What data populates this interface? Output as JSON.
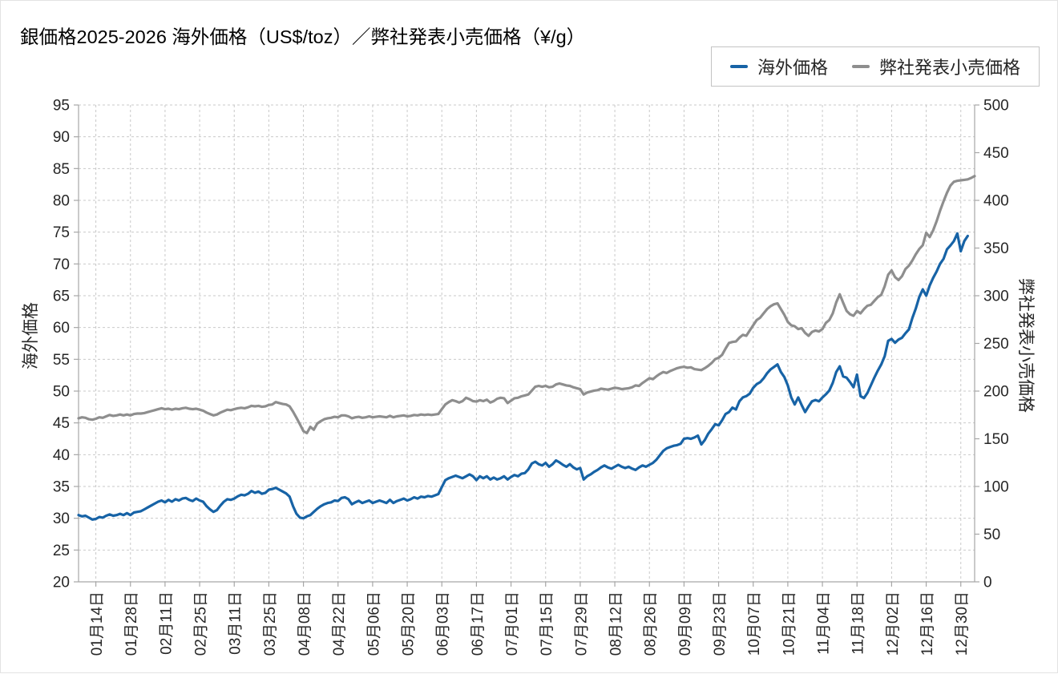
{
  "title": "銀価格2025-2026 海外価格（US$/toz）／弊社発表小売価格（¥/g）",
  "chart_data": {
    "type": "line",
    "title": "銀価格2025-2026 海外価格（US$/toz）／弊社発表小売価格（¥/g）",
    "grid": true,
    "legend_position": "top-right",
    "x_tick_labels": [
      "01月14日",
      "01月28日",
      "02月11日",
      "02月25日",
      "03月11日",
      "03月25日",
      "04月08日",
      "04月22日",
      "05月06日",
      "05月20日",
      "06月03日",
      "06月17日",
      "07月01日",
      "07月15日",
      "07月29日",
      "08月12日",
      "08月26日",
      "09月09日",
      "09月23日",
      "10月07日",
      "10月21日",
      "11月04日",
      "11月18日",
      "12月02日",
      "12月16日",
      "12月30日"
    ],
    "tick_start_index": 5,
    "tick_step": 10,
    "axes": {
      "left": {
        "title": "海外価格",
        "min": 20,
        "max": 95,
        "step": 5,
        "ticks": [
          20,
          25,
          30,
          35,
          40,
          45,
          50,
          55,
          60,
          65,
          70,
          75,
          80,
          85,
          90,
          95
        ]
      },
      "right": {
        "title": "弊社発表小売価格",
        "min": 0,
        "max": 500,
        "step": 50,
        "ticks": [
          0,
          50,
          100,
          150,
          200,
          250,
          300,
          350,
          400,
          450,
          500
        ]
      }
    },
    "series": [
      {
        "name": "海外価格",
        "axis": "left",
        "unit": "US$/toz",
        "color": "#1763A6",
        "values": [
          30.5,
          30.3,
          30.4,
          30.1,
          29.8,
          29.9,
          30.2,
          30.1,
          30.4,
          30.6,
          30.4,
          30.5,
          30.7,
          30.5,
          30.8,
          30.5,
          30.9,
          31.0,
          31.1,
          31.4,
          31.7,
          32.0,
          32.3,
          32.6,
          32.8,
          32.5,
          32.9,
          32.6,
          33.0,
          32.8,
          33.1,
          33.2,
          32.9,
          32.7,
          33.1,
          32.8,
          32.6,
          31.9,
          31.4,
          31.0,
          31.3,
          32.0,
          32.6,
          33.0,
          32.9,
          33.1,
          33.45,
          33.7,
          33.6,
          33.85,
          34.3,
          34.0,
          34.2,
          33.85,
          34.0,
          34.5,
          34.6,
          34.8,
          34.5,
          34.2,
          33.9,
          33.4,
          31.9,
          30.7,
          30.1,
          30.0,
          30.3,
          30.5,
          31.0,
          31.5,
          31.9,
          32.2,
          32.4,
          32.5,
          32.8,
          32.7,
          33.2,
          33.3,
          33.0,
          32.2,
          32.5,
          32.75,
          32.4,
          32.6,
          32.8,
          32.4,
          32.6,
          32.8,
          32.6,
          32.4,
          32.9,
          32.4,
          32.7,
          32.9,
          33.1,
          32.8,
          33.0,
          33.3,
          33.1,
          33.4,
          33.3,
          33.5,
          33.4,
          33.6,
          33.8,
          34.9,
          36.0,
          36.3,
          36.5,
          36.7,
          36.5,
          36.3,
          36.6,
          36.9,
          36.6,
          36.0,
          36.6,
          36.3,
          36.6,
          36.1,
          36.4,
          36.1,
          36.3,
          36.6,
          36.1,
          36.5,
          36.8,
          36.6,
          37.0,
          37.1,
          37.7,
          38.6,
          38.9,
          38.5,
          38.3,
          38.7,
          38.1,
          38.5,
          39.1,
          38.8,
          38.4,
          38.1,
          38.5,
          38.0,
          37.7,
          37.9,
          36.1,
          36.6,
          36.9,
          37.3,
          37.6,
          38.0,
          38.3,
          38.0,
          37.8,
          38.1,
          38.4,
          38.1,
          37.9,
          38.1,
          37.8,
          37.6,
          38.0,
          38.3,
          38.1,
          38.4,
          38.7,
          39.2,
          39.9,
          40.6,
          41.0,
          41.2,
          41.4,
          41.5,
          41.7,
          42.5,
          42.6,
          42.5,
          42.7,
          43.0,
          41.6,
          42.3,
          43.3,
          44.0,
          44.8,
          44.6,
          45.4,
          46.4,
          46.7,
          47.4,
          47.1,
          48.4,
          49.0,
          49.2,
          49.6,
          50.5,
          51.1,
          51.4,
          52.0,
          52.8,
          53.4,
          53.8,
          54.2,
          53.0,
          52.2,
          50.9,
          49.0,
          47.9,
          49.0,
          47.8,
          46.7,
          47.6,
          48.4,
          48.6,
          48.4,
          49.0,
          49.5,
          50.1,
          51.3,
          53.0,
          53.9,
          52.3,
          52.1,
          51.4,
          50.6,
          52.6,
          49.2,
          48.9,
          49.7,
          50.9,
          52.1,
          53.2,
          54.2,
          55.5,
          57.9,
          58.2,
          57.6,
          58.1,
          58.4,
          59.1,
          59.7,
          61.5,
          63.0,
          64.8,
          66.0,
          65.0,
          66.6,
          67.8,
          68.8,
          70.0,
          70.8,
          72.3,
          72.9,
          73.6,
          74.8,
          72.0,
          73.6,
          74.4,
          null,
          null
        ]
      },
      {
        "name": "弊社発表小売価格",
        "axis": "right",
        "unit": "¥/g",
        "color": "#8E8E8E",
        "values": [
          171.5,
          172.5,
          172,
          170.5,
          170,
          171,
          172.5,
          172,
          173.5,
          175,
          174,
          174.5,
          175.5,
          174.5,
          175.5,
          174.5,
          176,
          176.5,
          176.5,
          177,
          178,
          179,
          180,
          181,
          182,
          181,
          181.5,
          180.5,
          181.5,
          181,
          182,
          182.5,
          181.5,
          181,
          181.5,
          180.5,
          179.5,
          177.5,
          176,
          174.5,
          175.5,
          177.5,
          179,
          180.5,
          180,
          181,
          182,
          182.5,
          182,
          183,
          184.5,
          184,
          184.5,
          183.5,
          184,
          185.5,
          186,
          188.5,
          187.5,
          186.5,
          186,
          184,
          178.5,
          172,
          165,
          158,
          156,
          162.5,
          159.5,
          166,
          168.5,
          170.5,
          171.5,
          172,
          173,
          172.5,
          174.5,
          174.5,
          173.5,
          171.5,
          172.5,
          173,
          172,
          172.5,
          173.5,
          172.5,
          173,
          173.5,
          173,
          172.5,
          174,
          172.5,
          173.5,
          174,
          174.5,
          173.5,
          174,
          175,
          174.5,
          175.5,
          175,
          175.5,
          175,
          175.5,
          176,
          181,
          186,
          188.5,
          190.5,
          189.5,
          188,
          189.5,
          193,
          191.5,
          189.5,
          189,
          190.5,
          189.5,
          191,
          188,
          189.5,
          192,
          193,
          192.5,
          187.5,
          190,
          192.5,
          193,
          194.5,
          195.5,
          196.5,
          200.5,
          204.5,
          205.5,
          204.5,
          205.5,
          204,
          204.5,
          207,
          208,
          207,
          206,
          205.5,
          204,
          203,
          202,
          196.5,
          198.5,
          199.5,
          200.5,
          201,
          202.5,
          202,
          201.5,
          202.5,
          203.5,
          203,
          202,
          202.5,
          203,
          204,
          206,
          205.5,
          208.5,
          211,
          213.5,
          212.5,
          215.5,
          218,
          220,
          219,
          221,
          222.5,
          224,
          225,
          225.5,
          224.5,
          225,
          223,
          222.5,
          222,
          224,
          226.5,
          229.5,
          233.5,
          235,
          238,
          244.5,
          250.5,
          251.5,
          252,
          256,
          259,
          258,
          263.5,
          269,
          274.5,
          277,
          281.5,
          286,
          289,
          291,
          292,
          286,
          280,
          272.5,
          269,
          268,
          265,
          266,
          261,
          258,
          262,
          263.5,
          262.5,
          265,
          271.5,
          274.5,
          281.5,
          293,
          301.5,
          292.5,
          284,
          280.5,
          279,
          284,
          281.5,
          286,
          289.5,
          290.5,
          294.5,
          298.5,
          301,
          310,
          322,
          326.5,
          319.5,
          316.5,
          320.5,
          328,
          331.5,
          337,
          343.5,
          349,
          353,
          366,
          361.5,
          368.5,
          378,
          389,
          399,
          408,
          415.5,
          419.5,
          420.5,
          421,
          421.5,
          422,
          423.5,
          425.5
        ]
      }
    ]
  },
  "style": {
    "grid_color": "#c9c9c9",
    "axis_color": "#a6a6a6",
    "text_color": "#262626",
    "background": "#ffffff",
    "legend_border": "#c3c3c3"
  }
}
